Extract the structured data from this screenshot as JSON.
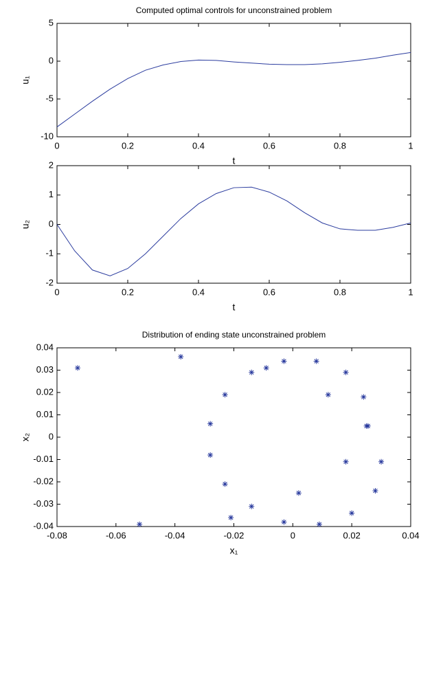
{
  "chart_data": [
    {
      "type": "line",
      "title": "Computed optimal controls for unconstrained problem",
      "xlabel": "t",
      "ylabel": "u₁",
      "x": [
        0,
        0.05,
        0.1,
        0.15,
        0.2,
        0.25,
        0.3,
        0.35,
        0.4,
        0.45,
        0.5,
        0.55,
        0.6,
        0.65,
        0.7,
        0.75,
        0.8,
        0.85,
        0.9,
        0.95,
        1
      ],
      "series": [
        {
          "color": "#2a3b9e",
          "values": [
            -8.7,
            -7.0,
            -5.3,
            -3.7,
            -2.3,
            -1.2,
            -0.5,
            -0.05,
            0.15,
            0.1,
            -0.1,
            -0.25,
            -0.4,
            -0.45,
            -0.45,
            -0.35,
            -0.15,
            0.1,
            0.4,
            0.8,
            1.15
          ]
        }
      ],
      "xlim": [
        0,
        1
      ],
      "ylim": [
        -10,
        5
      ],
      "xticks": [
        0,
        0.2,
        0.4,
        0.6,
        0.8,
        1
      ],
      "yticks": [
        -10,
        -5,
        0,
        5
      ]
    },
    {
      "type": "line",
      "xlabel": "t",
      "ylabel": "u₂",
      "x": [
        0,
        0.05,
        0.1,
        0.15,
        0.2,
        0.25,
        0.3,
        0.35,
        0.4,
        0.45,
        0.5,
        0.55,
        0.6,
        0.65,
        0.7,
        0.75,
        0.8,
        0.85,
        0.9,
        0.95,
        1
      ],
      "series": [
        {
          "color": "#2a3b9e",
          "values": [
            0,
            -0.9,
            -1.55,
            -1.75,
            -1.5,
            -1.0,
            -0.4,
            0.2,
            0.7,
            1.05,
            1.25,
            1.27,
            1.1,
            0.8,
            0.4,
            0.05,
            -0.15,
            -0.2,
            -0.2,
            -0.1,
            0.05
          ]
        }
      ],
      "xlim": [
        0,
        1
      ],
      "ylim": [
        -2,
        2
      ],
      "xticks": [
        0,
        0.2,
        0.4,
        0.6,
        0.8,
        1
      ],
      "yticks": [
        -2,
        -1,
        0,
        1,
        2
      ]
    },
    {
      "type": "scatter",
      "title": "Distribution of ending state unconstrained problem",
      "xlabel": "x₁",
      "ylabel": "x₂",
      "x": [
        -0.073,
        -0.038,
        -0.014,
        -0.009,
        -0.003,
        0.008,
        0.018,
        -0.023,
        0.012,
        0.024,
        -0.028,
        0.025,
        0.0255,
        -0.028,
        0.018,
        0.03,
        -0.023,
        0.002,
        0.028,
        -0.014,
        0.02,
        -0.021,
        -0.003,
        0.009,
        -0.052
      ],
      "series": [
        {
          "color": "#2a3b9e",
          "values": [
            0.031,
            0.036,
            0.029,
            0.031,
            0.034,
            0.034,
            0.029,
            0.019,
            0.019,
            0.018,
            0.006,
            0.005,
            0.005,
            -0.008,
            -0.011,
            -0.011,
            -0.021,
            -0.025,
            -0.024,
            -0.031,
            -0.034,
            -0.036,
            -0.038,
            -0.039,
            -0.039
          ]
        }
      ],
      "xlim": [
        -0.08,
        0.04
      ],
      "ylim": [
        -0.04,
        0.04
      ],
      "xticks": [
        -0.08,
        -0.06,
        -0.04,
        -0.02,
        0,
        0.02,
        0.04
      ],
      "yticks": [
        -0.04,
        -0.03,
        -0.02,
        -0.01,
        0,
        0.01,
        0.02,
        0.03,
        0.04
      ]
    }
  ]
}
